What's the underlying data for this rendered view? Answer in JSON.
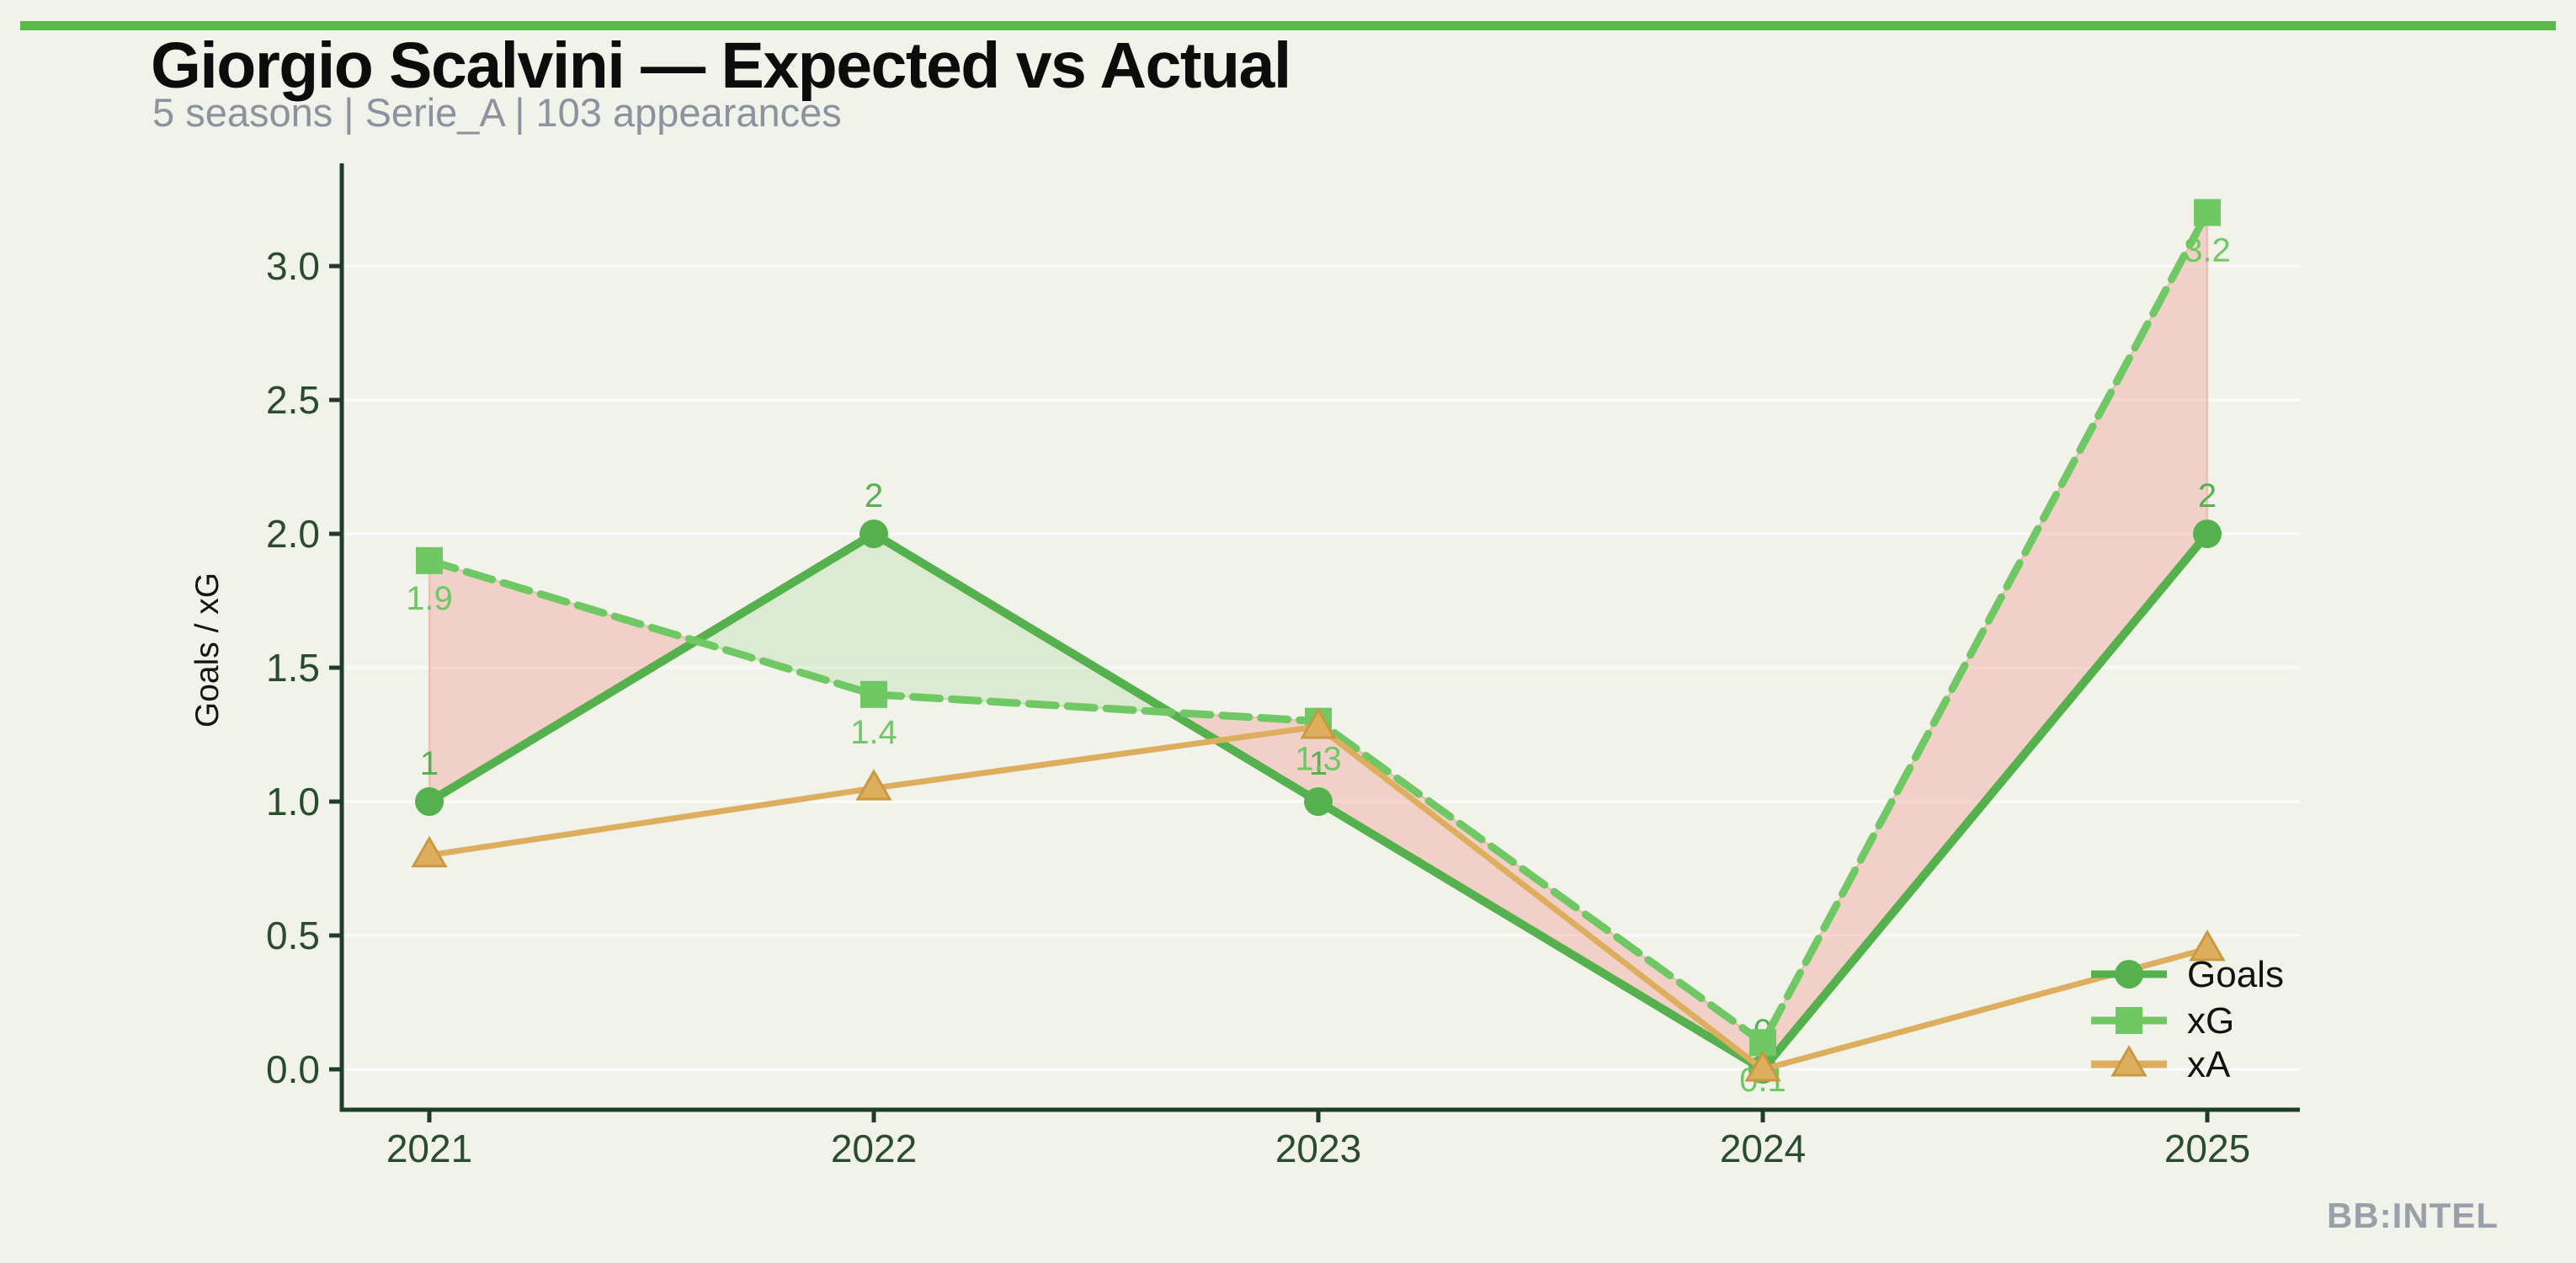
{
  "page": {
    "background": "#f1f2ea",
    "accent_bar_color": "#5bb84d",
    "watermark": "BB:INTEL",
    "watermark_color": "#9aa0aa"
  },
  "header": {
    "title": "Giorgio Scalvini — Expected vs Actual",
    "title_color": "#0c0c0c",
    "subtitle": "5 seasons | Serie_A | 103 appearances",
    "subtitle_color": "#8c929e"
  },
  "chart_data": {
    "type": "line",
    "title": "Giorgio Scalvini — Expected vs Actual",
    "x": [
      "2021",
      "2022",
      "2023",
      "2024",
      "2025"
    ],
    "series": [
      {
        "name": "Goals",
        "values": [
          1,
          2,
          1,
          0,
          2
        ],
        "labels": [
          "1",
          "2",
          "1",
          "0",
          "2"
        ],
        "label_position": "above",
        "color": "#55b14e",
        "marker": "circle",
        "line_style": "solid"
      },
      {
        "name": "xG",
        "values": [
          1.9,
          1.4,
          1.3,
          0.1,
          3.2
        ],
        "labels": [
          "1.9",
          "1.4",
          "1.3",
          "0.1",
          "3.2"
        ],
        "label_position": "below",
        "color": "#6fc863",
        "marker": "square",
        "line_style": "dashed"
      },
      {
        "name": "xA",
        "values": [
          0.8,
          1.05,
          1.28,
          0,
          0.45
        ],
        "labels": [
          "",
          "",
          "",
          "",
          ""
        ],
        "label_position": "below",
        "color": "#dcae5e",
        "marker": "triangle",
        "marker_edge": "#c9983f",
        "line_style": "solid"
      }
    ],
    "xlabel": "",
    "ylabel": "Goals / xG",
    "yticks": [
      0,
      0.5,
      1,
      1.5,
      2,
      2.5,
      3
    ],
    "ytick_labels": [
      "0.0",
      "0.5",
      "1.0",
      "1.5",
      "2.0",
      "2.5",
      "3.0"
    ],
    "ylim": [
      -0.15,
      3.53
    ],
    "grid": true,
    "legend_position": "lower right",
    "colors": {
      "axis": "#1e3c26",
      "tick_labels": "#2a4c2e",
      "grid": "rgba(255,255,255,0.7)",
      "fill_over": "rgba(124,200,100,0.18)",
      "fill_over_edge": "rgba(124,200,100,0.30)",
      "fill_under": "rgba(238,145,134,0.35)",
      "fill_under_edge": "rgba(240,150,140,0.45)",
      "legend_text": "#111111",
      "ylabel_color": "#141414"
    }
  }
}
